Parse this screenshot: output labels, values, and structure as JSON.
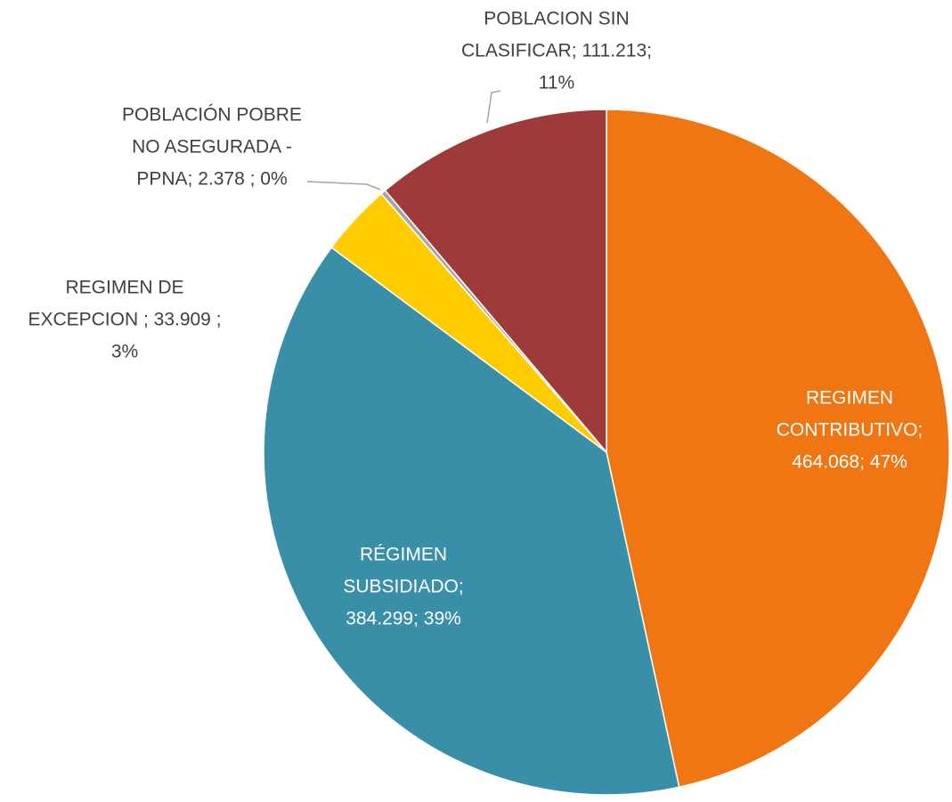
{
  "chart_data": {
    "type": "pie",
    "categories": [
      "REGIMEN CONTRIBUTIVO",
      "RÉGIMEN SUBSIDIADO",
      "REGIMEN DE EXCEPCION",
      "POBLACIÓN POBRE NO ASEGURADA - PPNA",
      "POBLACION SIN CLASIFICAR"
    ],
    "values": [
      464068,
      384299,
      33909,
      2378,
      111213
    ],
    "value_labels": [
      "464.068",
      "384.299",
      "33.909",
      "2.378",
      "111.213"
    ],
    "data_labels": [
      [
        "REGIMEN",
        "CONTRIBUTIVO;",
        "464.068; 47%"
      ],
      [
        "RÉGIMEN",
        "SUBSIDIADO;",
        "384.299; 39%"
      ],
      [
        "REGIMEN DE",
        "EXCEPCION ; 33.909 ;",
        "3%"
      ],
      [
        "POBLACIÓN POBRE",
        "NO ASEGURADA -",
        "PPNA; 2.378 ; 0%"
      ],
      [
        "POBLACION SIN",
        "CLASIFICAR; 111.213;",
        "11%"
      ]
    ],
    "colors": [
      "#f07613",
      "#3a8fa8",
      "#ffcc00",
      "#a5a5a5",
      "#9e3b3a"
    ]
  }
}
